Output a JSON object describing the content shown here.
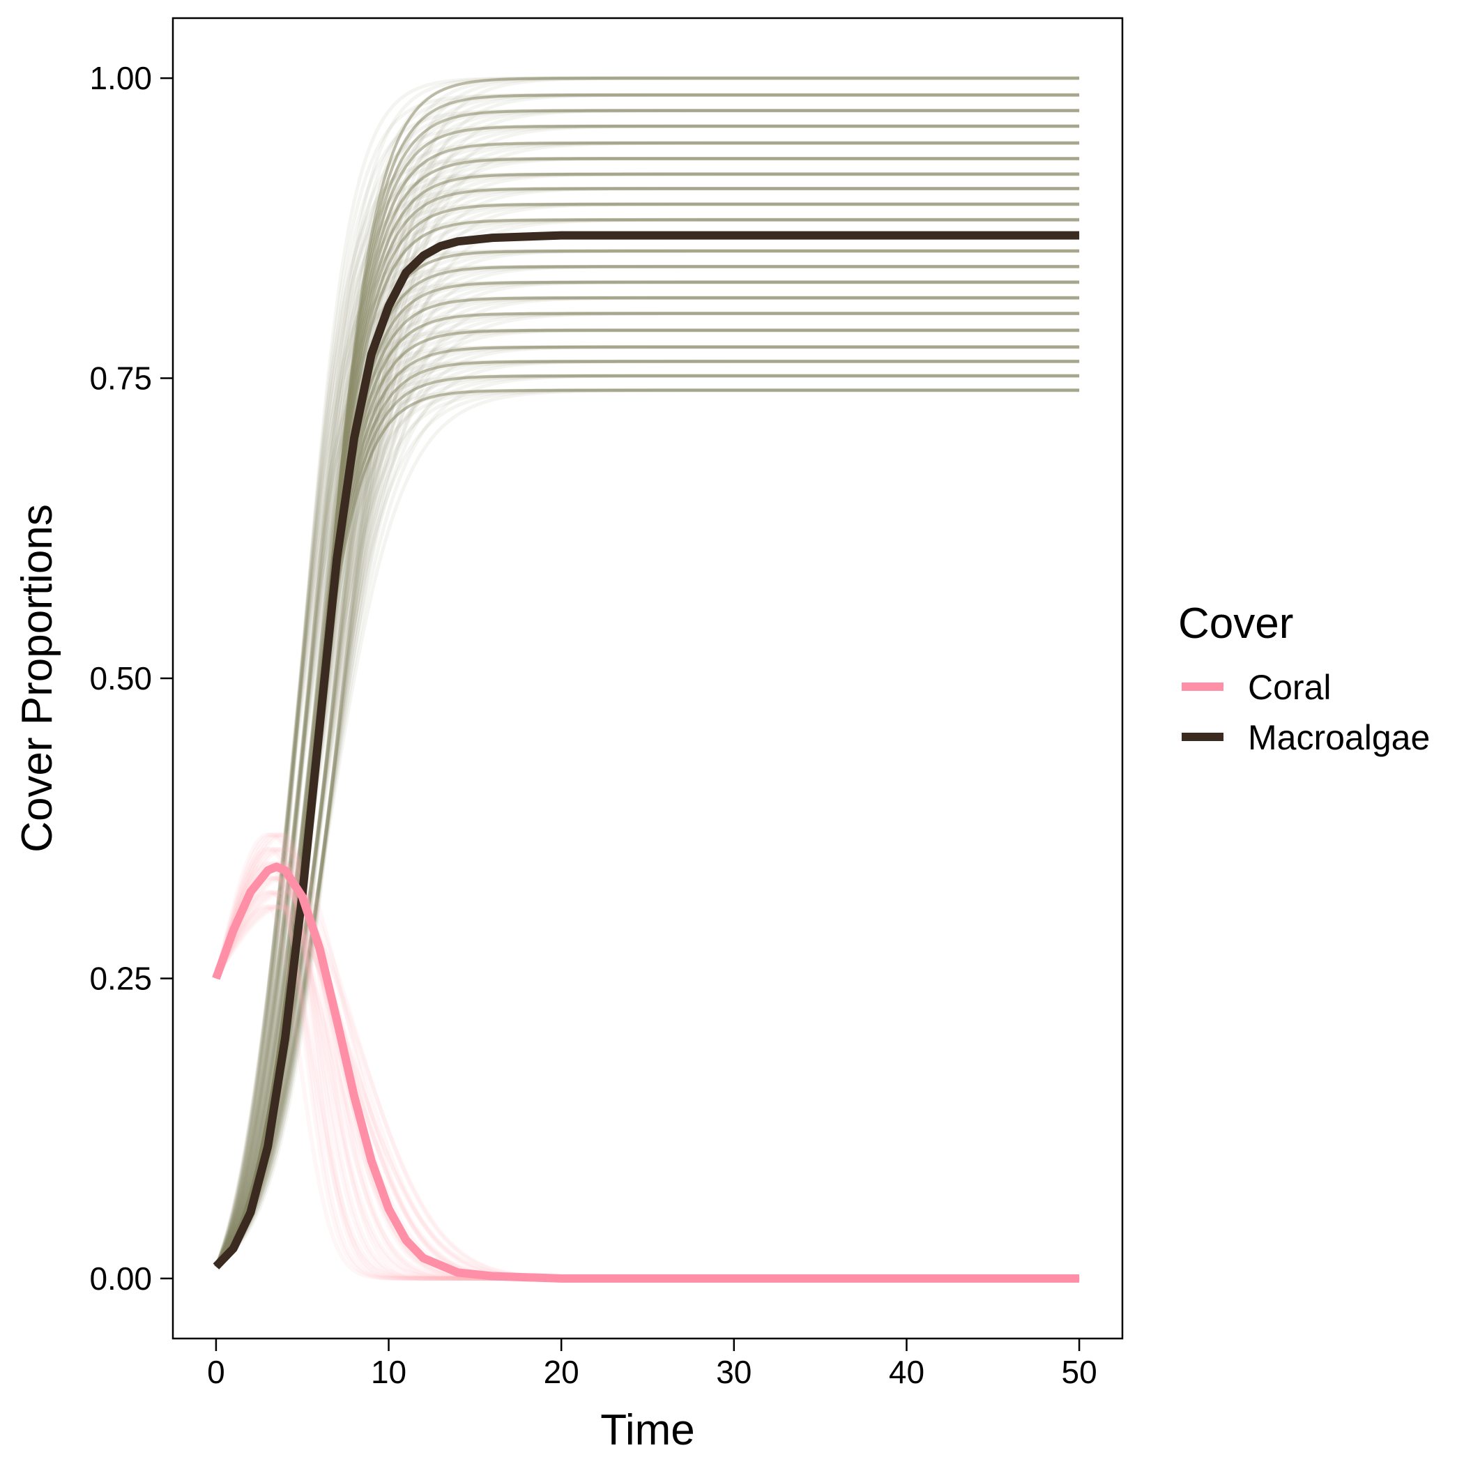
{
  "chart_data": {
    "type": "line",
    "title": "",
    "xlabel": "Time",
    "ylabel": "Cover Proportions",
    "xlim": [
      -2.5,
      52.5
    ],
    "ylim": [
      -0.05,
      1.05
    ],
    "x_ticks": [
      0,
      10,
      20,
      30,
      40,
      50
    ],
    "x_tick_labels": [
      "0",
      "10",
      "20",
      "30",
      "40",
      "50"
    ],
    "y_ticks": [
      0,
      0.25,
      0.5,
      0.75,
      1.0
    ],
    "y_tick_labels": [
      "0.00",
      "0.25",
      "0.50",
      "0.75",
      "1.00"
    ],
    "grid": false,
    "legend": {
      "title": "Cover",
      "placement": "right",
      "entries": [
        {
          "label": "Coral",
          "color": "#ff8fa6"
        },
        {
          "label": "Macroalgae",
          "color": "#3a2a1f"
        }
      ]
    },
    "series": [
      {
        "name": "Coral",
        "color": "#ff8fa6",
        "x": [
          0,
          1,
          2,
          3,
          3.5,
          4,
          5,
          6,
          7,
          8,
          9,
          10,
          11,
          12,
          14,
          16,
          18,
          20,
          30,
          40,
          50
        ],
        "values": [
          0.25,
          0.29,
          0.322,
          0.34,
          0.343,
          0.34,
          0.318,
          0.275,
          0.215,
          0.152,
          0.098,
          0.058,
          0.032,
          0.017,
          0.005,
          0.002,
          0.001,
          0.0,
          0.0,
          0.0,
          0.0
        ]
      },
      {
        "name": "Macroalgae",
        "color": "#3a2a1f",
        "x": [
          0,
          1,
          2,
          3,
          4,
          5,
          6,
          7,
          8,
          9,
          10,
          11,
          12,
          13,
          14,
          16,
          18,
          20,
          25,
          30,
          40,
          50
        ],
        "values": [
          0.01,
          0.025,
          0.055,
          0.11,
          0.2,
          0.32,
          0.46,
          0.6,
          0.7,
          0.77,
          0.81,
          0.838,
          0.852,
          0.86,
          0.864,
          0.867,
          0.868,
          0.869,
          0.869,
          0.869,
          0.869,
          0.869
        ]
      }
    ],
    "uncertainty_bands": {
      "macroalgae_plateaus": [
        0.74,
        0.752,
        0.764,
        0.776,
        0.79,
        0.804,
        0.817,
        0.83,
        0.843,
        0.856,
        0.882,
        0.895,
        0.908,
        0.92,
        0.933,
        0.946,
        0.96,
        0.973,
        0.986,
        1.0
      ],
      "macroalgae_color": "#8a8a68",
      "coral_color": "#ffb3bd"
    }
  }
}
